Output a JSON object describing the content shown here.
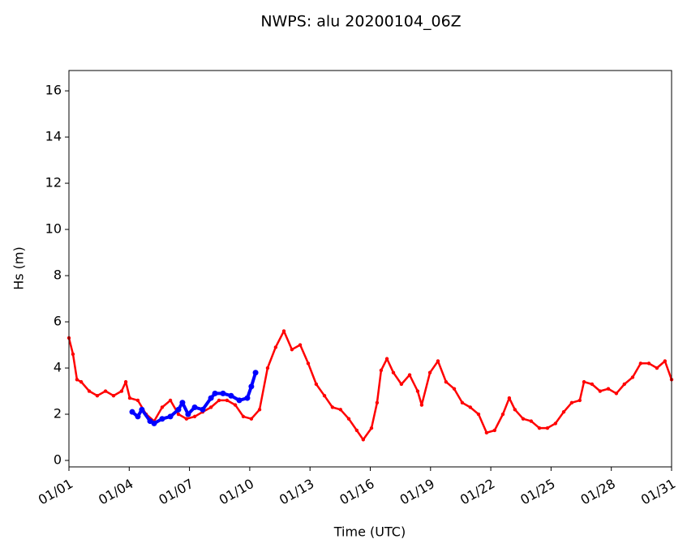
{
  "chart_data": {
    "type": "line",
    "title": "NWPS: alu 20200104_06Z",
    "x_label": "Time (UTC)",
    "y_label": "Hs (m)",
    "xlim": [
      1,
      31
    ],
    "ylim": [
      -0.28,
      16.88
    ],
    "xticks": [
      {
        "value": 1,
        "label": "01/01"
      },
      {
        "value": 4,
        "label": "01/04"
      },
      {
        "value": 7,
        "label": "01/07"
      },
      {
        "value": 10,
        "label": "01/10"
      },
      {
        "value": 13,
        "label": "01/13"
      },
      {
        "value": 16,
        "label": "01/16"
      },
      {
        "value": 19,
        "label": "01/19"
      },
      {
        "value": 22,
        "label": "01/22"
      },
      {
        "value": 25,
        "label": "01/25"
      },
      {
        "value": 28,
        "label": "01/28"
      },
      {
        "value": 31,
        "label": "01/31"
      }
    ],
    "yticks": [
      0,
      2,
      4,
      6,
      8,
      10,
      12,
      14,
      16
    ],
    "grid": false,
    "series": [
      {
        "color": "#ff0000",
        "x": [
          1.0,
          1.2,
          1.4,
          1.61,
          2.01,
          2.41,
          2.82,
          3.22,
          3.62,
          3.83,
          4.03,
          4.43,
          4.84,
          5.24,
          5.64,
          6.05,
          6.45,
          6.85,
          7.26,
          7.66,
          8.07,
          8.47,
          8.87,
          9.28,
          9.68,
          10.08,
          10.49,
          10.89,
          11.29,
          11.7,
          12.1,
          12.51,
          12.91,
          13.31,
          13.72,
          14.12,
          14.52,
          14.93,
          15.33,
          15.65,
          16.06,
          16.34,
          16.54,
          16.83,
          17.15,
          17.55,
          17.96,
          18.36,
          18.56,
          18.97,
          19.37,
          19.77,
          20.18,
          20.58,
          20.98,
          21.39,
          21.79,
          22.19,
          22.6,
          22.92,
          23.2,
          23.61,
          24.01,
          24.42,
          24.82,
          25.22,
          25.63,
          26.03,
          26.43,
          26.64,
          27.04,
          27.44,
          27.85,
          28.25,
          28.65,
          29.06,
          29.46,
          29.87,
          30.27,
          30.67,
          31.0
        ],
        "values": [
          5.3,
          4.6,
          3.5,
          3.4,
          3.0,
          2.8,
          3.0,
          2.8,
          3.0,
          3.4,
          2.7,
          2.6,
          2.0,
          1.7,
          2.3,
          2.6,
          2.0,
          1.8,
          1.9,
          2.1,
          2.3,
          2.6,
          2.6,
          2.4,
          1.9,
          1.8,
          2.2,
          4.0,
          4.9,
          5.6,
          4.8,
          5.0,
          4.2,
          3.3,
          2.8,
          2.3,
          2.2,
          1.8,
          1.3,
          0.9,
          1.4,
          2.5,
          3.9,
          4.4,
          3.8,
          3.3,
          3.7,
          3.0,
          2.4,
          3.8,
          4.3,
          3.4,
          3.1,
          2.5,
          2.3,
          2.0,
          1.2,
          1.3,
          2.0,
          2.7,
          2.2,
          1.8,
          1.7,
          1.4,
          1.4,
          1.6,
          2.1,
          2.5,
          2.6,
          3.4,
          3.3,
          3.0,
          3.1,
          2.9,
          3.3,
          3.6,
          4.2,
          4.2,
          4.0,
          4.3,
          3.5
        ]
      },
      {
        "color": "#0000ff",
        "x": [
          4.15,
          4.43,
          4.63,
          5.04,
          5.24,
          5.64,
          6.05,
          6.45,
          6.65,
          6.93,
          7.26,
          7.66,
          8.07,
          8.27,
          8.67,
          9.07,
          9.48,
          9.88,
          10.08,
          10.29
        ],
        "values": [
          2.1,
          1.9,
          2.2,
          1.7,
          1.6,
          1.8,
          1.9,
          2.2,
          2.5,
          2.0,
          2.3,
          2.2,
          2.7,
          2.9,
          2.9,
          2.8,
          2.6,
          2.7,
          3.2,
          3.8
        ]
      }
    ]
  }
}
